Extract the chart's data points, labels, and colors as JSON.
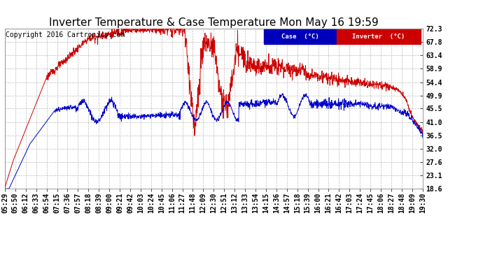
{
  "title": "Inverter Temperature & Case Temperature Mon May 16 19:59",
  "copyright": "Copyright 2016 Cartronics.com",
  "ylabel_right_ticks": [
    18.6,
    23.1,
    27.6,
    32.0,
    36.5,
    41.0,
    45.5,
    49.9,
    54.4,
    58.9,
    63.4,
    67.8,
    72.3
  ],
  "ylim": [
    18.6,
    72.3
  ],
  "background_color": "#ffffff",
  "grid_color": "#bbbbbb",
  "legend": [
    {
      "label": "Case  (°C)",
      "bg": "#0000bb",
      "fg": "#ffffff"
    },
    {
      "label": "Inverter  (°C)",
      "bg": "#cc0000",
      "fg": "#ffffff"
    }
  ],
  "xtick_labels": [
    "05:29",
    "05:50",
    "06:12",
    "06:33",
    "06:54",
    "07:15",
    "07:36",
    "07:57",
    "08:18",
    "08:39",
    "09:00",
    "09:21",
    "09:42",
    "10:03",
    "10:24",
    "10:45",
    "11:06",
    "11:27",
    "11:48",
    "12:09",
    "12:30",
    "12:51",
    "13:12",
    "13:33",
    "13:54",
    "14:15",
    "14:36",
    "14:57",
    "15:18",
    "15:39",
    "16:00",
    "16:21",
    "16:42",
    "17:03",
    "17:24",
    "17:45",
    "18:06",
    "18:27",
    "18:48",
    "19:09",
    "19:30"
  ],
  "case_color": "#0000cc",
  "inverter_color": "#cc0000",
  "title_fontsize": 11,
  "copyright_fontsize": 7,
  "tick_fontsize": 7
}
